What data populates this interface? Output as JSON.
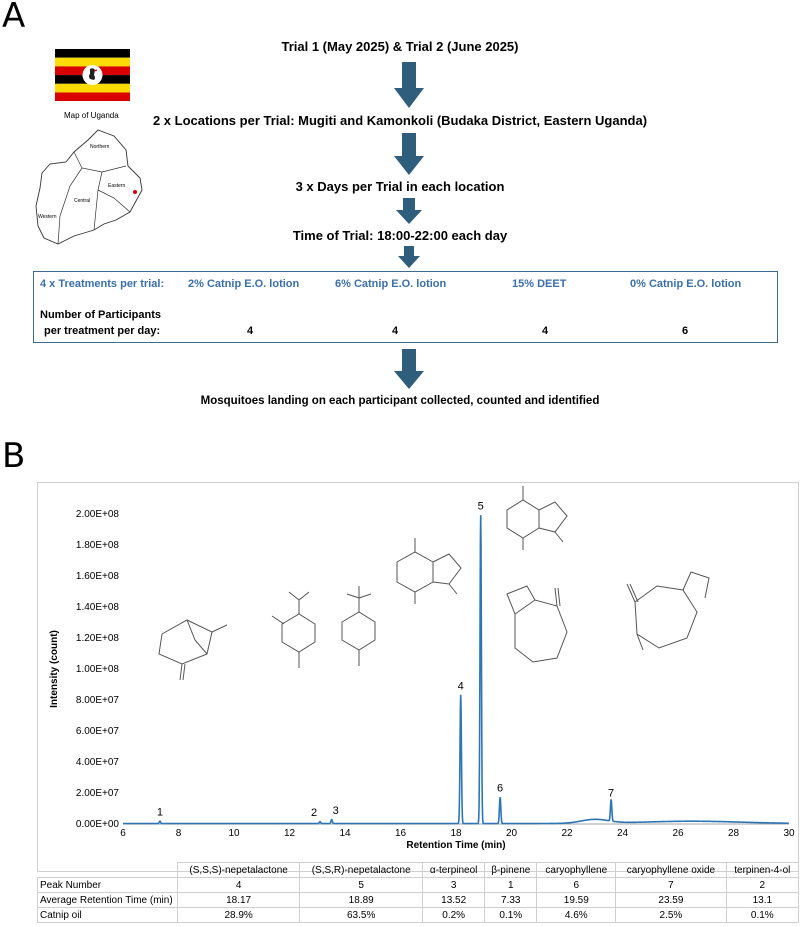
{
  "panels": {
    "a": "A",
    "b": "B"
  },
  "flow": {
    "trials": "Trial 1 (May 2025) & Trial 2 (June 2025)",
    "locations": "2 x Locations per Trial: Mugiti and Kamonkoli (Budaka District, Eastern Uganda)",
    "days": "3 x Days per Trial in each location",
    "time": "Time of Trial: 18:00-22:00 each day",
    "outcome": "Mosquitoes landing on each participant collected, counted and identified"
  },
  "map": {
    "caption": "Map of Uganda",
    "regions": [
      "Northern",
      "Eastern",
      "Central",
      "Western"
    ]
  },
  "flag_colors": [
    "#000000",
    "#fcdc04",
    "#d90000"
  ],
  "treatments": {
    "heading": "4 x Treatments per trial:",
    "items": [
      {
        "label": "2% Catnip E.O. lotion",
        "participants": "4"
      },
      {
        "label": "6% Catnip E.O. lotion",
        "participants": "4"
      },
      {
        "label": "15% DEET",
        "participants": "4"
      },
      {
        "label": "0% Catnip E.O. lotion",
        "participants": "6"
      }
    ],
    "participants_label_1": "Number of Participants",
    "participants_label_2": "per treatment per day:"
  },
  "chart_data": {
    "type": "line",
    "xlabel": "Retention Time (min)",
    "ylabel": "Intensity (count)",
    "xlim": [
      6,
      30
    ],
    "ylim": [
      0,
      200000000
    ],
    "x_ticks": [
      "6",
      "8",
      "10",
      "12",
      "14",
      "16",
      "18",
      "20",
      "22",
      "24",
      "26",
      "28",
      "30"
    ],
    "y_ticks": [
      "0.00E+00",
      "2.00E+07",
      "4.00E+07",
      "6.00E+07",
      "8.00E+07",
      "1.00E+08",
      "1.20E+08",
      "1.40E+08",
      "1.60E+08",
      "1.80E+08",
      "2.00E+08"
    ],
    "line_color": "#2e75b6",
    "peaks": [
      {
        "label": "1",
        "x": 7.33,
        "y": 1500000
      },
      {
        "label": "2",
        "x": 13.1,
        "y": 1200000
      },
      {
        "label": "3",
        "x": 13.52,
        "y": 2500000
      },
      {
        "label": "4",
        "x": 18.17,
        "y": 83000000
      },
      {
        "label": "5",
        "x": 18.89,
        "y": 199000000
      },
      {
        "label": "6",
        "x": 19.59,
        "y": 17000000
      },
      {
        "label": "7",
        "x": 23.59,
        "y": 14000000
      }
    ]
  },
  "table": {
    "columns": [
      "(S,S,S)-nepetalactone",
      "(S,S,R)-nepetalactone",
      "α-terpineol",
      "β-pinene",
      "caryophyllene",
      "caryophyllene oxide",
      "terpinen-4-ol"
    ],
    "rows": [
      {
        "label": "Peak Number",
        "values": [
          "4",
          "5",
          "3",
          "1",
          "6",
          "7",
          "2"
        ]
      },
      {
        "label": "Average Retention Time (min)",
        "values": [
          "18.17",
          "18.89",
          "13.52",
          "7.33",
          "19.59",
          "23.59",
          "13.1"
        ]
      },
      {
        "label": "Catnip oil",
        "values": [
          "28.9%",
          "63.5%",
          "0.2%",
          "0.1%",
          "4.6%",
          "2.5%",
          "0.1%"
        ]
      }
    ]
  }
}
